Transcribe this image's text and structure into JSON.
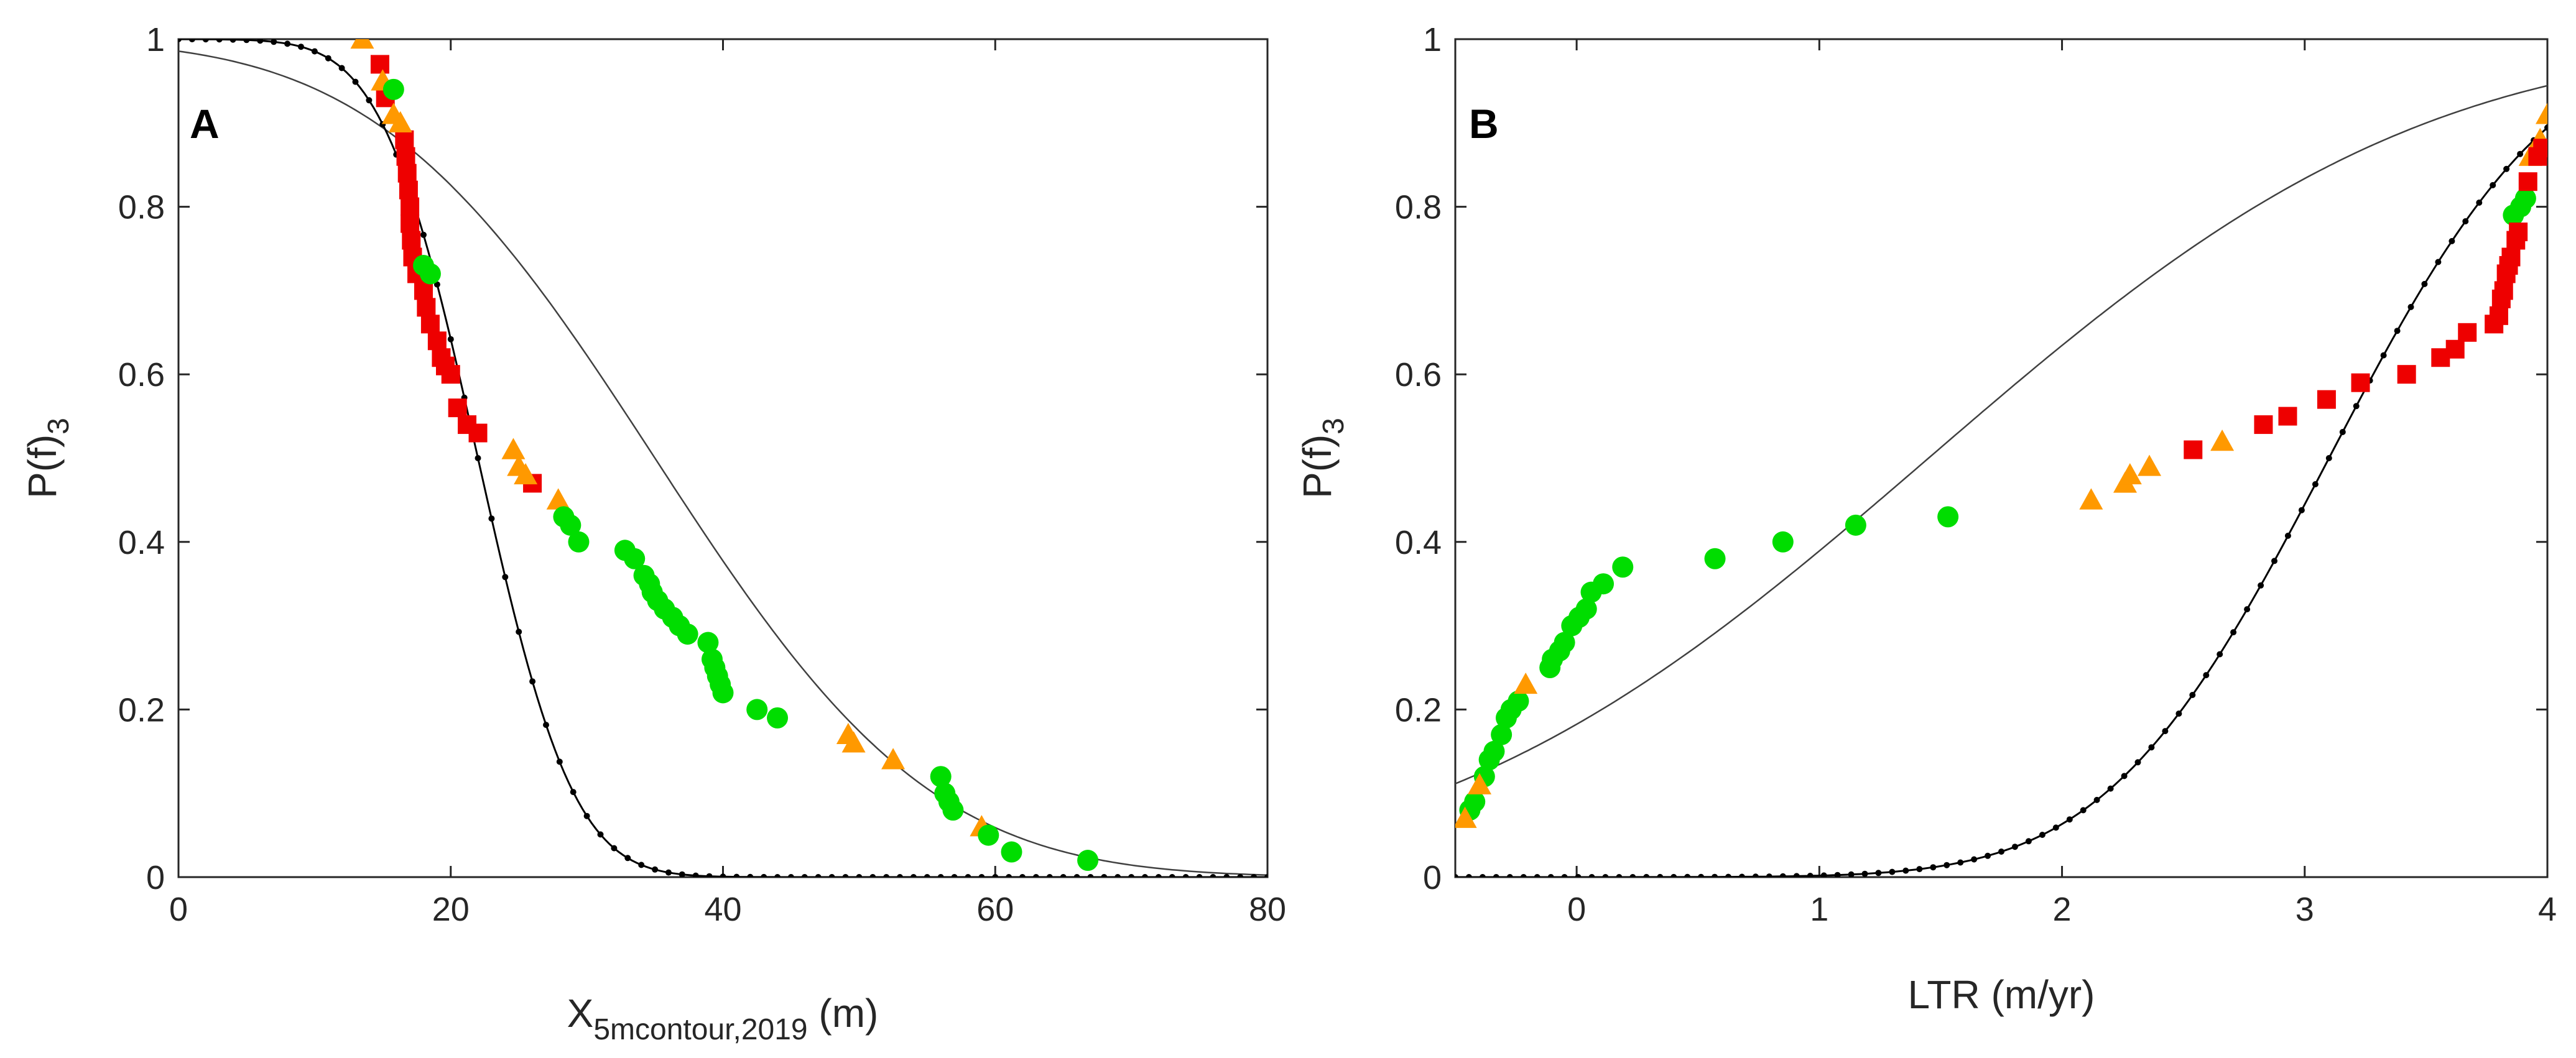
{
  "colors": {
    "green": "#00DD00",
    "red": "#EE0000",
    "orange": "#FF9900",
    "curve": "#404040",
    "dotted": "#000000"
  },
  "chart_data": [
    {
      "type": "scatter",
      "panel_label": "A",
      "xlabel_main": "X",
      "xlabel_sub": "5mcontour,2019",
      "xlabel_unit": " (m)",
      "ylabel_main": "P(f)",
      "ylabel_sub": "3",
      "xlim": [
        0,
        80
      ],
      "ylim": [
        0,
        1
      ],
      "xticks": [
        0,
        20,
        40,
        60,
        80
      ],
      "xtick_labels": [
        "0",
        "20",
        "40",
        "60",
        "80"
      ],
      "yticks": [
        0,
        0.2,
        0.4,
        0.6,
        0.8,
        1
      ],
      "ytick_labels": [
        "0",
        "0.2",
        "0.4",
        "0.6",
        "0.8",
        "1"
      ],
      "models": [
        {
          "name": "smooth",
          "kind": "decreasing",
          "style": "solid",
          "mu": 35,
          "sigma": 16
        },
        {
          "name": "dotted",
          "kind": "decreasing",
          "style": "dotted",
          "mu": 22,
          "sigma": 5.5
        }
      ],
      "series": [
        {
          "name": "red",
          "marker": "square",
          "color": "#EE0000",
          "points": [
            [
              14.8,
              0.97
            ],
            [
              15.2,
              0.93
            ],
            [
              16.6,
              0.88
            ],
            [
              16.7,
              0.86
            ],
            [
              16.8,
              0.84
            ],
            [
              16.9,
              0.82
            ],
            [
              17.0,
              0.8
            ],
            [
              17.0,
              0.78
            ],
            [
              17.1,
              0.76
            ],
            [
              17.2,
              0.74
            ],
            [
              17.5,
              0.72
            ],
            [
              18.0,
              0.7
            ],
            [
              18.2,
              0.68
            ],
            [
              18.5,
              0.66
            ],
            [
              19.0,
              0.64
            ],
            [
              19.3,
              0.62
            ],
            [
              19.6,
              0.61
            ],
            [
              20.0,
              0.6
            ],
            [
              20.5,
              0.56
            ],
            [
              21.2,
              0.54
            ],
            [
              22.0,
              0.53
            ],
            [
              26.0,
              0.47
            ]
          ]
        },
        {
          "name": "orange",
          "marker": "triangle",
          "color": "#FF9900",
          "points": [
            [
              13.5,
              1.0
            ],
            [
              15.0,
              0.95
            ],
            [
              15.8,
              0.91
            ],
            [
              16.3,
              0.9
            ],
            [
              24.6,
              0.51
            ],
            [
              25.0,
              0.49
            ],
            [
              25.5,
              0.48
            ],
            [
              27.9,
              0.45
            ],
            [
              49.2,
              0.17
            ],
            [
              49.6,
              0.16
            ],
            [
              52.5,
              0.14
            ],
            [
              59.0,
              0.06
            ]
          ]
        },
        {
          "name": "green",
          "marker": "circle",
          "color": "#00DD00",
          "points": [
            [
              15.8,
              0.94
            ],
            [
              18.0,
              0.73
            ],
            [
              18.5,
              0.72
            ],
            [
              28.3,
              0.43
            ],
            [
              28.8,
              0.42
            ],
            [
              29.4,
              0.4
            ],
            [
              32.8,
              0.39
            ],
            [
              33.5,
              0.38
            ],
            [
              34.2,
              0.36
            ],
            [
              34.6,
              0.35
            ],
            [
              34.8,
              0.34
            ],
            [
              35.2,
              0.33
            ],
            [
              35.7,
              0.32
            ],
            [
              36.3,
              0.31
            ],
            [
              36.8,
              0.3
            ],
            [
              37.4,
              0.29
            ],
            [
              38.9,
              0.28
            ],
            [
              39.2,
              0.26
            ],
            [
              39.4,
              0.25
            ],
            [
              39.6,
              0.24
            ],
            [
              39.8,
              0.23
            ],
            [
              40.0,
              0.22
            ],
            [
              42.5,
              0.2
            ],
            [
              44.0,
              0.19
            ],
            [
              56.0,
              0.12
            ],
            [
              56.3,
              0.1
            ],
            [
              56.6,
              0.09
            ],
            [
              56.9,
              0.08
            ],
            [
              59.5,
              0.05
            ],
            [
              61.2,
              0.03
            ],
            [
              66.8,
              0.02
            ]
          ]
        }
      ]
    },
    {
      "type": "scatter",
      "panel_label": "B",
      "xlabel_main": "LTR (m/yr)",
      "xlabel_sub": "",
      "xlabel_unit": "",
      "ylabel_main": "P(f)",
      "ylabel_sub": "3",
      "xlim": [
        -0.5,
        4
      ],
      "ylim": [
        0,
        1
      ],
      "xticks": [
        0,
        1,
        2,
        3,
        4
      ],
      "xtick_labels": [
        "0",
        "1",
        "2",
        "3",
        "4"
      ],
      "yticks": [
        0,
        0.2,
        0.4,
        0.6,
        0.8,
        1
      ],
      "ytick_labels": [
        "0",
        "0.2",
        "0.4",
        "0.6",
        "0.8",
        "1"
      ],
      "models": [
        {
          "name": "smooth",
          "kind": "increasing",
          "style": "solid",
          "mu": 1.45,
          "sigma": 1.6
        },
        {
          "name": "dotted",
          "kind": "increasing",
          "style": "dotted",
          "mu": 3.1,
          "sigma": 0.72,
          "scale": 1.0
        }
      ],
      "series": [
        {
          "name": "green",
          "marker": "circle",
          "color": "#00DD00",
          "points": [
            [
              -0.44,
              0.08
            ],
            [
              -0.42,
              0.09
            ],
            [
              -0.38,
              0.12
            ],
            [
              -0.36,
              0.14
            ],
            [
              -0.34,
              0.15
            ],
            [
              -0.31,
              0.17
            ],
            [
              -0.29,
              0.19
            ],
            [
              -0.27,
              0.2
            ],
            [
              -0.24,
              0.21
            ],
            [
              -0.11,
              0.25
            ],
            [
              -0.1,
              0.26
            ],
            [
              -0.07,
              0.27
            ],
            [
              -0.05,
              0.28
            ],
            [
              -0.02,
              0.3
            ],
            [
              0.01,
              0.31
            ],
            [
              0.04,
              0.32
            ],
            [
              0.06,
              0.34
            ],
            [
              0.11,
              0.35
            ],
            [
              0.19,
              0.37
            ],
            [
              0.57,
              0.38
            ],
            [
              0.85,
              0.4
            ],
            [
              1.15,
              0.42
            ],
            [
              1.53,
              0.43
            ],
            [
              3.86,
              0.79
            ],
            [
              3.89,
              0.8
            ],
            [
              3.91,
              0.81
            ]
          ]
        },
        {
          "name": "orange",
          "marker": "triangle",
          "color": "#FF9900",
          "points": [
            [
              -0.46,
              0.07
            ],
            [
              -0.4,
              0.11
            ],
            [
              -0.21,
              0.23
            ],
            [
              2.12,
              0.45
            ],
            [
              2.26,
              0.47
            ],
            [
              2.28,
              0.48
            ],
            [
              2.36,
              0.49
            ],
            [
              2.66,
              0.52
            ],
            [
              3.93,
              0.86
            ],
            [
              3.97,
              0.88
            ],
            [
              4.0,
              0.91
            ]
          ]
        },
        {
          "name": "red",
          "marker": "square",
          "color": "#EE0000",
          "points": [
            [
              2.54,
              0.51
            ],
            [
              2.83,
              0.54
            ],
            [
              2.93,
              0.55
            ],
            [
              3.09,
              0.57
            ],
            [
              3.23,
              0.59
            ],
            [
              3.42,
              0.6
            ],
            [
              3.56,
              0.62
            ],
            [
              3.62,
              0.63
            ],
            [
              3.67,
              0.65
            ],
            [
              3.78,
              0.66
            ],
            [
              3.8,
              0.67
            ],
            [
              3.81,
              0.69
            ],
            [
              3.82,
              0.7
            ],
            [
              3.83,
              0.72
            ],
            [
              3.84,
              0.73
            ],
            [
              3.85,
              0.74
            ],
            [
              3.87,
              0.76
            ],
            [
              3.88,
              0.77
            ],
            [
              3.92,
              0.83
            ],
            [
              3.96,
              0.86
            ],
            [
              3.98,
              0.87
            ]
          ]
        }
      ]
    }
  ]
}
